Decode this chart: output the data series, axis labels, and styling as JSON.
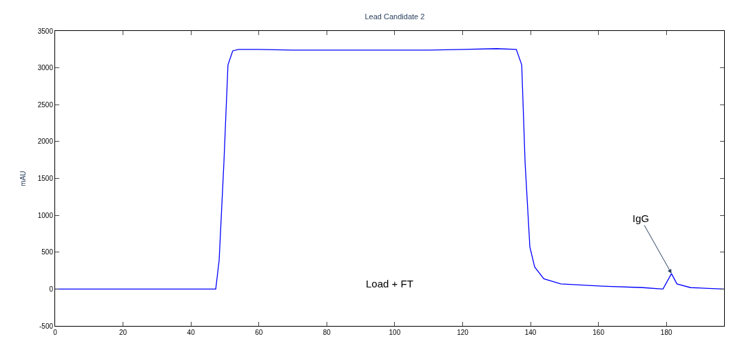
{
  "chart_data": {
    "type": "line",
    "title": "Lead Candidate 2",
    "ylabel": "mAU",
    "x": [
      0,
      20,
      40,
      47.3,
      48.3,
      49.7,
      50.9,
      52.3,
      54,
      60,
      70,
      80,
      90,
      100,
      110,
      120,
      130,
      135.8,
      137.4,
      138.4,
      139.8,
      141.2,
      143.9,
      148.9,
      161,
      173,
      179,
      181.5,
      183.1,
      187.1,
      197
    ],
    "series": [
      {
        "color": "#0000ff",
        "values": [
          0,
          0,
          0,
          0,
          390,
          1710,
          3040,
          3230,
          3250,
          3250,
          3240,
          3240,
          3240,
          3240,
          3240,
          3250,
          3260,
          3250,
          3040,
          1710,
          570,
          300,
          140,
          70,
          40,
          20,
          0,
          210,
          70,
          20,
          0
        ]
      }
    ],
    "xlim": [
      0,
      197
    ],
    "ylim": [
      -500,
      3500
    ],
    "xticks": [
      0,
      20,
      40,
      60,
      80,
      100,
      120,
      140,
      160,
      180
    ],
    "yticks": [
      -500,
      0,
      500,
      1000,
      1500,
      2000,
      2500,
      3000,
      3500
    ],
    "legend": false,
    "marker": "none",
    "line_style": "solid",
    "annotations": [
      {
        "text": "IgG",
        "x": 181.5,
        "y": 212
      },
      "Load + FT"
    ]
  }
}
